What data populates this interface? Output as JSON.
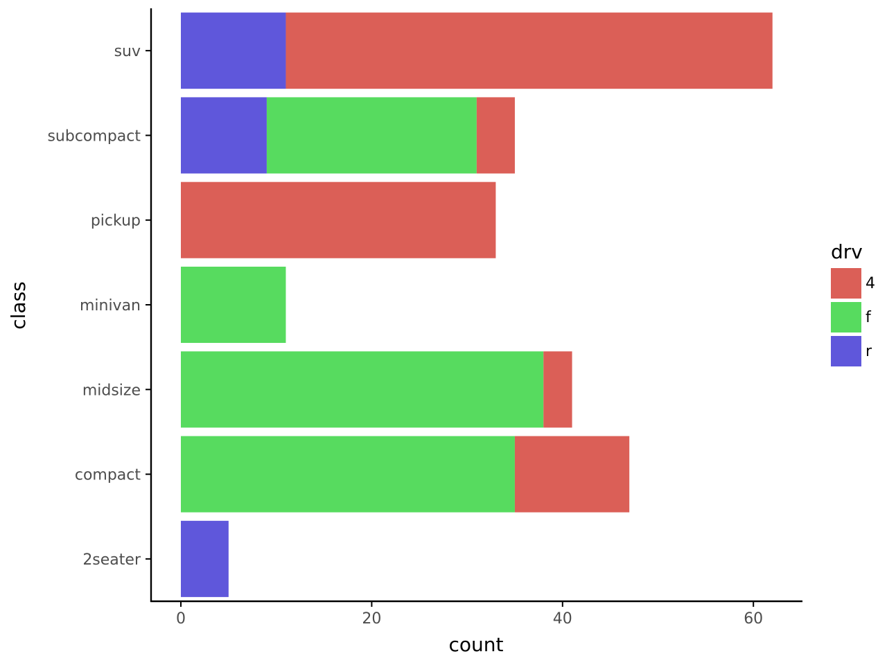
{
  "chart_data": {
    "type": "bar",
    "orientation": "horizontal",
    "stacked": true,
    "categories": [
      "2seater",
      "compact",
      "midsize",
      "minivan",
      "pickup",
      "subcompact",
      "suv"
    ],
    "series": [
      {
        "name": "4",
        "color": "#db5f57",
        "values": [
          0,
          12,
          3,
          0,
          33,
          4,
          51
        ]
      },
      {
        "name": "f",
        "color": "#57db5f",
        "values": [
          0,
          35,
          38,
          11,
          0,
          22,
          0
        ]
      },
      {
        "name": "r",
        "color": "#5f57db",
        "values": [
          5,
          0,
          0,
          0,
          0,
          9,
          11
        ]
      }
    ],
    "xlabel": "count",
    "ylabel": "class",
    "xticks": [
      0,
      20,
      40,
      60
    ],
    "xlim": [
      -3.1,
      65.1
    ],
    "grid": false,
    "legend": {
      "title": "drv",
      "position": "right"
    }
  }
}
